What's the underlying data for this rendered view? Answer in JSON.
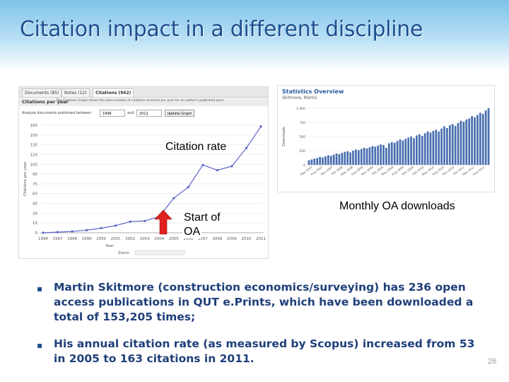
{
  "slide": {
    "title": "Citation impact in a different discipline",
    "page_number": "26"
  },
  "citations_panel": {
    "tabs": [
      "Documents (85)",
      "Notes (12)",
      "Citations (942)"
    ],
    "header": "Citations per year",
    "description": "The Citations Graph shows the total number of citations received per year for an author's published work",
    "range_label": "Analyze documents published between",
    "from_year": "1996",
    "and_label": "and",
    "to_year": "2012",
    "update_button": "Update Graph",
    "y_axis_label": "Citations per year",
    "x_axis_label": "Year",
    "zoom_label": "Zoom"
  },
  "stats_panel": {
    "title": "Statistics Overview",
    "subtitle": "Skitmore, Martin",
    "y_axis_label": "Downloads",
    "y_ticks": [
      "1,000",
      "750",
      "500",
      "250",
      "0"
    ],
    "x_labels": [
      "May 2007",
      "Aug 2007",
      "Nov 2007",
      "Feb 2008",
      "May 2008",
      "Aug 2008",
      "Nov 2008",
      "Feb 2009",
      "May 2009",
      "Aug 2009",
      "Nov 2009",
      "Feb 2010",
      "May 2010",
      "Aug 2010",
      "Nov 2010",
      "Feb 2011",
      "May 2011",
      "Aug 2011"
    ],
    "monthly_downloads": [
      80,
      95,
      110,
      120,
      140,
      130,
      150,
      170,
      160,
      180,
      200,
      190,
      210,
      230,
      240,
      220,
      250,
      270,
      260,
      280,
      300,
      290,
      310,
      330,
      320,
      340,
      360,
      350,
      300,
      380,
      400,
      390,
      420,
      450,
      430,
      460,
      480,
      500,
      470,
      520,
      540,
      510,
      560,
      590,
      570,
      600,
      620,
      590,
      640,
      680,
      650,
      700,
      720,
      690,
      740,
      780,
      760,
      800,
      820,
      860,
      840,
      880,
      920,
      900,
      960,
      1000
    ]
  },
  "overlay_labels": {
    "citation_rate": "Citation rate",
    "start_of_oa_line1": "Start of",
    "start_of_oa_line2": "OA",
    "monthly_downloads": "Monthly OA downloads"
  },
  "bullets": [
    "Martin Skitmore (construction economics/surveying) has 236 open access publications in QUT e.Prints, which have been downloaded a total of 153,205 times;",
    "His annual citation rate (as measured by Scopus) increased from 53 in 2005 to 163 citations in 2011."
  ],
  "chart_data": [
    {
      "type": "line",
      "title": "Citations per year",
      "xlabel": "Year",
      "ylabel": "Citations per year",
      "x": [
        "1996",
        "1997",
        "1998",
        "1999",
        "2000",
        "2001",
        "2002",
        "2003",
        "2004",
        "2005",
        "2006",
        "2007",
        "2008",
        "2009",
        "2010",
        "2011"
      ],
      "values": [
        0,
        1,
        2,
        4,
        7,
        11,
        17,
        18,
        25,
        53,
        70,
        104,
        96,
        102,
        130,
        163
      ],
      "y_ticks": [
        0,
        15,
        30,
        45,
        60,
        75,
        90,
        105,
        120,
        135,
        150,
        165
      ],
      "ylim": [
        0,
        165
      ]
    },
    {
      "type": "bar",
      "title": "Statistics Overview",
      "ylabel": "Downloads",
      "ylim": [
        0,
        1000
      ],
      "note": "Monthly OA downloads, May 2007 - Aug 2011"
    }
  ],
  "colors": {
    "title_text": "#1f4f8f",
    "bullet_text": "#1f3f7a",
    "chart_line": "#5a63c8",
    "bar_fill": "#4a6fb0",
    "arrow": "#e02020"
  }
}
